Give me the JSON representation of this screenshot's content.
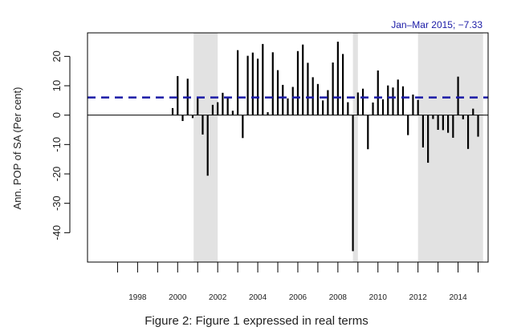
{
  "chart_data": {
    "type": "bar",
    "ylabel": "Ann. POP of SA (Per cent)",
    "annotation": "Jan–Mar 2015; −7.33",
    "caption": "Figure 2: Figure 1 expressed in real terms",
    "xlim": [
      1995.5,
      2015.5
    ],
    "ylim": [
      -50,
      28
    ],
    "x_ticks": [
      1998,
      2000,
      2002,
      2004,
      2006,
      2008,
      2010,
      2012,
      2014
    ],
    "y_ticks": [
      20,
      10,
      0,
      -10,
      -20,
      -30,
      -40
    ],
    "reference_line": {
      "value": 6.0,
      "style": "dashed",
      "color": "#1a1aa6"
    },
    "zero_line": true,
    "shaded_periods": [
      {
        "start": 2000.8,
        "end": 2002.0
      },
      {
        "start": 2008.75,
        "end": 2009.0
      },
      {
        "start": 2012.0,
        "end": 2015.25
      }
    ],
    "points": [
      {
        "x": 1999.75,
        "y": 2.4
      },
      {
        "x": 2000.0,
        "y": 13.3
      },
      {
        "x": 2000.25,
        "y": -2.0
      },
      {
        "x": 2000.5,
        "y": 12.4
      },
      {
        "x": 2000.75,
        "y": -1.0
      },
      {
        "x": 2001.0,
        "y": 6.2
      },
      {
        "x": 2001.25,
        "y": -6.6
      },
      {
        "x": 2001.5,
        "y": -20.6
      },
      {
        "x": 2001.75,
        "y": 3.5
      },
      {
        "x": 2002.0,
        "y": 4.4
      },
      {
        "x": 2002.25,
        "y": 7.6
      },
      {
        "x": 2002.5,
        "y": 6.0
      },
      {
        "x": 2002.75,
        "y": 1.5
      },
      {
        "x": 2003.0,
        "y": 22.1
      },
      {
        "x": 2003.25,
        "y": -7.8
      },
      {
        "x": 2003.5,
        "y": 20.2
      },
      {
        "x": 2003.75,
        "y": 21.3
      },
      {
        "x": 2004.0,
        "y": 19.2
      },
      {
        "x": 2004.25,
        "y": 24.2
      },
      {
        "x": 2004.5,
        "y": 1.0
      },
      {
        "x": 2004.75,
        "y": 21.4
      },
      {
        "x": 2005.0,
        "y": 15.3
      },
      {
        "x": 2005.25,
        "y": 10.3
      },
      {
        "x": 2005.5,
        "y": 5.7
      },
      {
        "x": 2005.75,
        "y": 9.6
      },
      {
        "x": 2006.0,
        "y": 21.8
      },
      {
        "x": 2006.25,
        "y": 24.0
      },
      {
        "x": 2006.5,
        "y": 17.8
      },
      {
        "x": 2006.75,
        "y": 12.9
      },
      {
        "x": 2007.0,
        "y": 10.6
      },
      {
        "x": 2007.25,
        "y": 5.0
      },
      {
        "x": 2007.5,
        "y": 8.5
      },
      {
        "x": 2007.75,
        "y": 17.9
      },
      {
        "x": 2008.0,
        "y": 25.0
      },
      {
        "x": 2008.25,
        "y": 20.8
      },
      {
        "x": 2008.5,
        "y": 4.4
      },
      {
        "x": 2008.75,
        "y": -46.3
      },
      {
        "x": 2009.0,
        "y": 7.7
      },
      {
        "x": 2009.25,
        "y": 9.0
      },
      {
        "x": 2009.5,
        "y": -11.6
      },
      {
        "x": 2009.75,
        "y": 4.3
      },
      {
        "x": 2010.0,
        "y": 15.2
      },
      {
        "x": 2010.25,
        "y": 5.4
      },
      {
        "x": 2010.5,
        "y": 10.1
      },
      {
        "x": 2010.75,
        "y": 9.4
      },
      {
        "x": 2011.0,
        "y": 12.1
      },
      {
        "x": 2011.25,
        "y": 9.8
      },
      {
        "x": 2011.5,
        "y": -6.8
      },
      {
        "x": 2011.75,
        "y": 7.0
      },
      {
        "x": 2012.0,
        "y": 5.2
      },
      {
        "x": 2012.25,
        "y": -11.0
      },
      {
        "x": 2012.5,
        "y": -16.2
      },
      {
        "x": 2012.75,
        "y": -1.3
      },
      {
        "x": 2013.0,
        "y": -5.0
      },
      {
        "x": 2013.25,
        "y": -5.1
      },
      {
        "x": 2013.5,
        "y": -6.0
      },
      {
        "x": 2013.75,
        "y": -7.7
      },
      {
        "x": 2014.0,
        "y": 13.1
      },
      {
        "x": 2014.25,
        "y": -1.4
      },
      {
        "x": 2014.5,
        "y": -11.5
      },
      {
        "x": 2014.75,
        "y": 2.2
      },
      {
        "x": 2015.0,
        "y": -7.33
      }
    ]
  }
}
